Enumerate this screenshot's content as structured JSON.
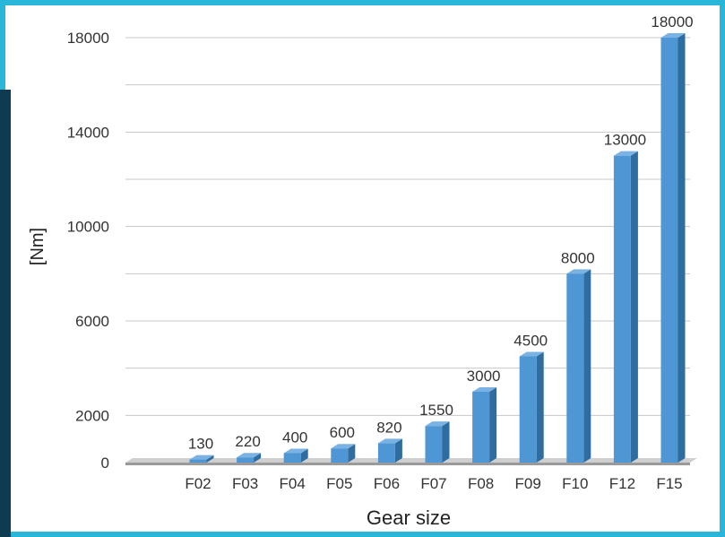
{
  "chart_data": {
    "type": "bar",
    "title": "",
    "xlabel": "Gear size",
    "ylabel": "[Nm]",
    "categories": [
      "F02",
      "F03",
      "F04",
      "F05",
      "F06",
      "F07",
      "F08",
      "F09",
      "F10",
      "F12",
      "F15"
    ],
    "values": [
      130,
      220,
      400,
      600,
      820,
      1550,
      3000,
      4500,
      8000,
      13000,
      18000
    ],
    "data_labels": [
      "130",
      "220",
      "400",
      "600",
      "820",
      "1550",
      "3000",
      "4500",
      "8000",
      "13000",
      "18000"
    ],
    "yticks": [
      0,
      2000,
      6000,
      10000,
      14000,
      18000
    ],
    "ylim": [
      0,
      18000
    ],
    "grid": true,
    "legend": "none",
    "colors": {
      "bar_front": "#4e97d4",
      "bar_side": "#2f6c9f",
      "bar_top": "#7ab3e3",
      "floor": "#9a9a9a",
      "grid": "#c8c8c8",
      "frame": "#29b6d8",
      "side_strip": "#0e3a52"
    }
  }
}
